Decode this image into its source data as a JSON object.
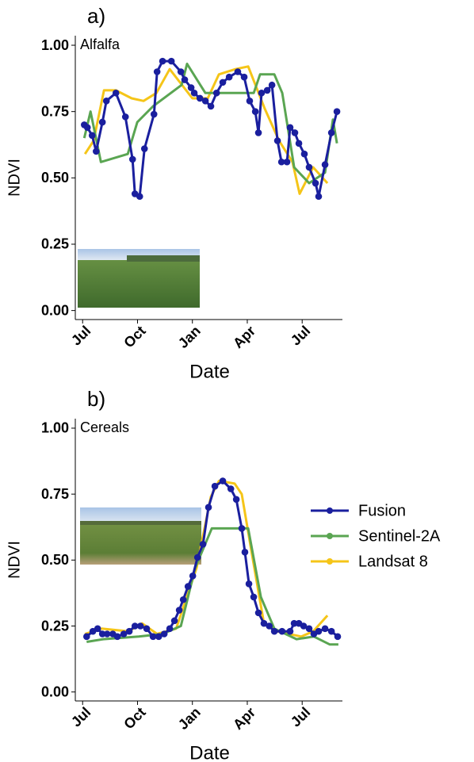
{
  "chart_data": [
    {
      "type": "line",
      "title": "a)",
      "annotation": "Alfalfa",
      "xlabel": "Date",
      "ylabel": "NDVI",
      "xlim": [
        -0.4,
        14.2
      ],
      "xticks": [
        {
          "value": 0,
          "label": "Jul"
        },
        {
          "value": 3,
          "label": "Oct"
        },
        {
          "value": 6,
          "label": "Jan"
        },
        {
          "value": 9,
          "label": "Apr"
        },
        {
          "value": 12,
          "label": "Jul"
        }
      ],
      "ylim": [
        -0.034,
        1.036
      ],
      "yticks": [
        {
          "value": 0,
          "label": "0.00"
        },
        0.25,
        {
          "value": 0.5,
          "label": "0.50"
        },
        0.75,
        {
          "value": 1,
          "label": "1.00"
        }
      ],
      "grid": false,
      "legend": false,
      "series": [
        {
          "color": "#f5c518",
          "markers": false,
          "x": [
            0.13,
            0.6,
            1.17,
            1.82,
            2.68,
            3.33,
            4.03,
            4.76,
            6.0,
            6.84,
            7.45,
            8.35,
            9.05,
            9.96,
            10.74,
            11.47,
            11.86,
            12.6,
            13.38
          ],
          "values": [
            0.59,
            0.64,
            0.83,
            0.83,
            0.8,
            0.79,
            0.82,
            0.91,
            0.8,
            0.8,
            0.89,
            0.91,
            0.92,
            0.76,
            0.64,
            0.56,
            0.44,
            0.54,
            0.48
          ]
        },
        {
          "color": "#5aa552",
          "markers": false,
          "x": [
            0.09,
            0.43,
            1.0,
            2.47,
            2.99,
            3.85,
            5.41,
            5.71,
            6.71,
            9.35,
            9.7,
            10.48,
            10.91,
            11.56,
            12.38,
            13.25,
            13.68,
            13.9
          ],
          "values": [
            0.65,
            0.75,
            0.56,
            0.59,
            0.71,
            0.77,
            0.85,
            0.93,
            0.82,
            0.82,
            0.89,
            0.89,
            0.82,
            0.54,
            0.48,
            0.52,
            0.72,
            0.63
          ]
        },
        {
          "color": "#1a1f9e",
          "markers": true,
          "x": [
            0.09,
            0.26,
            0.52,
            0.74,
            1.08,
            1.3,
            1.82,
            2.34,
            2.73,
            2.86,
            3.12,
            3.38,
            3.9,
            4.07,
            4.37,
            4.85,
            5.37,
            5.58,
            5.93,
            6.1,
            6.41,
            6.71,
            7.01,
            7.32,
            7.66,
            8.01,
            8.48,
            8.83,
            9.13,
            9.44,
            9.61,
            9.78,
            10.09,
            10.35,
            10.65,
            10.87,
            11.17,
            11.34,
            11.6,
            11.82,
            12.12,
            12.38,
            12.73,
            12.9,
            13.25,
            13.6,
            13.9
          ],
          "values": [
            0.7,
            0.69,
            0.66,
            0.6,
            0.71,
            0.79,
            0.82,
            0.73,
            0.57,
            0.44,
            0.43,
            0.61,
            0.74,
            0.9,
            0.94,
            0.94,
            0.9,
            0.87,
            0.84,
            0.82,
            0.8,
            0.79,
            0.77,
            0.82,
            0.86,
            0.88,
            0.9,
            0.88,
            0.79,
            0.75,
            0.67,
            0.82,
            0.83,
            0.85,
            0.64,
            0.56,
            0.56,
            0.69,
            0.67,
            0.63,
            0.59,
            0.54,
            0.48,
            0.43,
            0.55,
            0.67,
            0.75
          ]
        }
      ]
    },
    {
      "type": "line",
      "title": "b)",
      "annotation": "Cereals",
      "xlabel": "Date",
      "ylabel": "NDVI",
      "xlim": [
        -0.4,
        14.2
      ],
      "xticks": [
        {
          "value": 0,
          "label": "Jul"
        },
        {
          "value": 3,
          "label": "Oct"
        },
        {
          "value": 6,
          "label": "Jan"
        },
        {
          "value": 9,
          "label": "Apr"
        },
        {
          "value": 12,
          "label": "Jul"
        }
      ],
      "ylim": [
        -0.034,
        1.036
      ],
      "yticks": [
        {
          "value": 0,
          "label": "0.00"
        },
        0.25,
        {
          "value": 0.5,
          "label": "0.50"
        },
        0.75,
        {
          "value": 1,
          "label": "1.00"
        }
      ],
      "grid": false,
      "legend": "right",
      "series": [
        {
          "name": "Landsat 8",
          "color": "#f5c518",
          "markers": false,
          "x": [
            0.13,
            1.04,
            2.51,
            3.25,
            4.07,
            5.11,
            6.23,
            7.01,
            7.45,
            8.31,
            8.7,
            9.26,
            9.91,
            10.61,
            11.95,
            12.6,
            13.38
          ],
          "values": [
            0.22,
            0.24,
            0.23,
            0.26,
            0.22,
            0.24,
            0.47,
            0.74,
            0.8,
            0.79,
            0.75,
            0.52,
            0.26,
            0.23,
            0.21,
            0.23,
            0.29
          ]
        },
        {
          "name": "Sentinel-2A",
          "color": "#5aa552",
          "markers": false,
          "x": [
            0.22,
            1.13,
            3.07,
            4.37,
            5.37,
            6.15,
            7.06,
            8.27,
            9.05,
            9.74,
            10.48,
            11.69,
            12.64,
            13.51,
            13.98
          ],
          "values": [
            0.19,
            0.2,
            0.21,
            0.22,
            0.25,
            0.47,
            0.62,
            0.62,
            0.62,
            0.36,
            0.24,
            0.2,
            0.21,
            0.18,
            0.18
          ]
        },
        {
          "name": "Fusion",
          "color": "#1a1f9e",
          "markers": true,
          "x": [
            0.22,
            0.56,
            0.82,
            1.08,
            1.34,
            1.65,
            1.9,
            2.25,
            2.55,
            2.86,
            3.16,
            3.5,
            3.85,
            4.16,
            4.46,
            4.76,
            5.02,
            5.28,
            5.5,
            5.76,
            6.02,
            6.28,
            6.58,
            6.88,
            7.23,
            7.66,
            8.1,
            8.4,
            8.7,
            8.87,
            9.09,
            9.35,
            9.61,
            9.91,
            10.2,
            10.48,
            10.9,
            11.34,
            11.56,
            11.82,
            12.08,
            12.38,
            12.64,
            12.9,
            13.25,
            13.6,
            13.94
          ],
          "values": [
            0.21,
            0.23,
            0.24,
            0.22,
            0.22,
            0.22,
            0.21,
            0.22,
            0.23,
            0.25,
            0.25,
            0.24,
            0.21,
            0.21,
            0.22,
            0.24,
            0.27,
            0.31,
            0.35,
            0.4,
            0.44,
            0.51,
            0.56,
            0.7,
            0.78,
            0.8,
            0.77,
            0.73,
            0.62,
            0.53,
            0.41,
            0.36,
            0.3,
            0.26,
            0.25,
            0.23,
            0.23,
            0.23,
            0.26,
            0.26,
            0.25,
            0.24,
            0.22,
            0.23,
            0.24,
            0.23,
            0.21
          ]
        }
      ]
    }
  ]
}
